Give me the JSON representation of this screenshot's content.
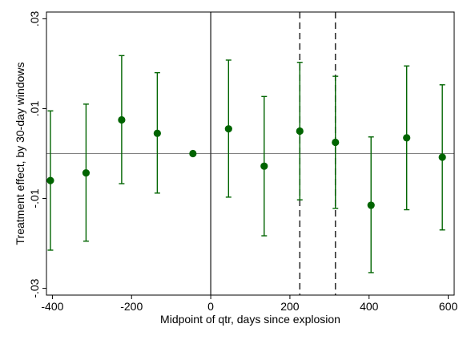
{
  "chart_data": {
    "type": "scatter",
    "title": "",
    "xlabel": "Midpoint of qtr, days since explosion",
    "ylabel": "Treatment effect, by 30-day windows",
    "xlim": [
      -415,
      615
    ],
    "ylim": [
      -0.0315,
      0.0315
    ],
    "x_ticks": [
      -400,
      -200,
      0,
      200,
      400,
      600
    ],
    "x_tick_labels": [
      "-400",
      "-200",
      "0",
      "200",
      "400",
      "600"
    ],
    "y_ticks": [
      -0.03,
      -0.01,
      0.01,
      0.03
    ],
    "y_tick_labels": [
      "-.03",
      "-.01",
      ".01",
      ".03"
    ],
    "reference_lines": {
      "horizontal_zero": 0,
      "vertical_solid": 0,
      "vertical_dashed": [
        225,
        315
      ]
    },
    "grid": false,
    "legend": "none",
    "colors": {
      "points": "#006400",
      "error_bars": "#006400",
      "zero_line": "#808080",
      "vertical_lines": "#333333"
    },
    "points": [
      {
        "x": -405,
        "y": -0.006,
        "lo": -0.0215,
        "hi": 0.0095
      },
      {
        "x": -315,
        "y": -0.0043,
        "lo": -0.0195,
        "hi": 0.011
      },
      {
        "x": -225,
        "y": 0.0075,
        "lo": -0.0067,
        "hi": 0.0218
      },
      {
        "x": -135,
        "y": 0.0045,
        "lo": -0.0088,
        "hi": 0.018
      },
      {
        "x": -45,
        "y": 0.0,
        "lo": 0.0,
        "hi": 0.0
      },
      {
        "x": 45,
        "y": 0.0055,
        "lo": -0.0097,
        "hi": 0.0208
      },
      {
        "x": 135,
        "y": -0.0028,
        "lo": -0.0183,
        "hi": 0.0127
      },
      {
        "x": 225,
        "y": 0.005,
        "lo": -0.0103,
        "hi": 0.0203
      },
      {
        "x": 315,
        "y": 0.0025,
        "lo": -0.0122,
        "hi": 0.0172
      },
      {
        "x": 405,
        "y": -0.0115,
        "lo": -0.0265,
        "hi": 0.0037
      },
      {
        "x": 495,
        "y": 0.0035,
        "lo": -0.0125,
        "hi": 0.0195
      },
      {
        "x": 585,
        "y": -0.0008,
        "lo": -0.017,
        "hi": 0.0153
      }
    ]
  }
}
